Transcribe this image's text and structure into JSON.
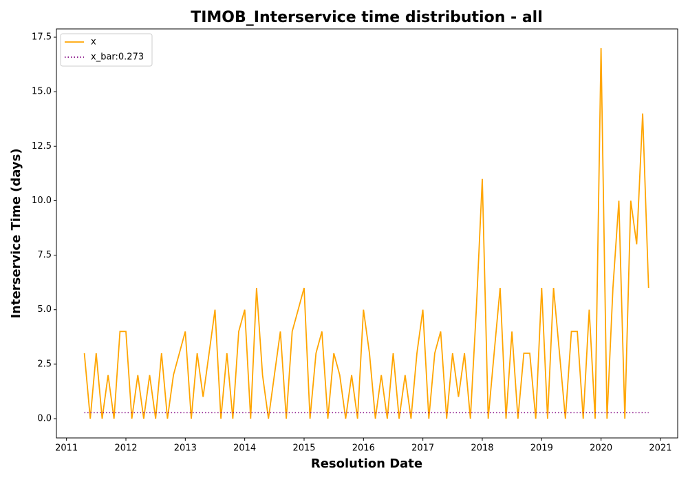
{
  "chart_data": {
    "type": "line",
    "title": "TIMOB_Interservice time distribution - all",
    "xlabel": "Resolution Date",
    "ylabel": "Interservice Time (days)",
    "xlim": [
      2010.83,
      2021.29
    ],
    "ylim": [
      -0.884,
      17.88
    ],
    "xticks": [
      2011,
      2012,
      2013,
      2014,
      2015,
      2016,
      2017,
      2018,
      2019,
      2020,
      2021
    ],
    "yticks": [
      {
        "value": 0,
        "label": "0.0"
      },
      2.5,
      {
        "value": 5,
        "label": "5.0"
      },
      7.5,
      {
        "value": 10,
        "label": "10.0"
      },
      12.5,
      {
        "value": 15,
        "label": "15.0"
      },
      17.5
    ],
    "legend": "upper left",
    "series": [
      {
        "name": "x",
        "color": "#ffa500",
        "linestyle": "solid",
        "x": [
          2011.3,
          2011.4,
          2011.5,
          2011.6,
          2011.7,
          2011.8,
          2011.9,
          2012.0,
          2012.1,
          2012.2,
          2012.3,
          2012.4,
          2012.5,
          2012.6,
          2012.7,
          2012.8,
          2012.9,
          2013.0,
          2013.1,
          2013.2,
          2013.3,
          2013.4,
          2013.5,
          2013.6,
          2013.7,
          2013.8,
          2013.9,
          2014.0,
          2014.1,
          2014.2,
          2014.3,
          2014.4,
          2014.5,
          2014.6,
          2014.7,
          2014.8,
          2014.9,
          2015.0,
          2015.1,
          2015.2,
          2015.3,
          2015.4,
          2015.5,
          2015.6,
          2015.7,
          2015.8,
          2015.9,
          2016.0,
          2016.1,
          2016.2,
          2016.3,
          2016.4,
          2016.5,
          2016.6,
          2016.7,
          2016.8,
          2016.9,
          2017.0,
          2017.1,
          2017.2,
          2017.3,
          2017.4,
          2017.5,
          2017.6,
          2017.7,
          2017.8,
          2017.9,
          2018.0,
          2018.1,
          2018.2,
          2018.3,
          2018.4,
          2018.5,
          2018.6,
          2018.7,
          2018.8,
          2018.9,
          2019.0,
          2019.1,
          2019.2,
          2019.3,
          2019.4,
          2019.5,
          2019.6,
          2019.7,
          2019.8,
          2019.9,
          2020.0,
          2020.1,
          2020.2,
          2020.3,
          2020.4,
          2020.5,
          2020.6,
          2020.7,
          2020.8
        ],
        "values": [
          3,
          0,
          3,
          0,
          2,
          0,
          4,
          4,
          0,
          2,
          0,
          2,
          0,
          3,
          0,
          2,
          3,
          4,
          0,
          3,
          1,
          3,
          5,
          0,
          3,
          0,
          4,
          5,
          0,
          6,
          2,
          0,
          2,
          4,
          0,
          4,
          5,
          6,
          0,
          3,
          4,
          0,
          3,
          2,
          0,
          2,
          0,
          5,
          3,
          0,
          2,
          0,
          3,
          0,
          2,
          0,
          3,
          5,
          0,
          3,
          4,
          0,
          3,
          1,
          3,
          0,
          5,
          11,
          0,
          3,
          6,
          0,
          4,
          0,
          3,
          3,
          0,
          6,
          0,
          6,
          3,
          0,
          4,
          4,
          0,
          5,
          0,
          17,
          0,
          6,
          10,
          0,
          10,
          8,
          14,
          6
        ]
      },
      {
        "name": "x_bar:0.273",
        "color": "#800080",
        "linestyle": "dotted",
        "x": [
          2011.3,
          2020.8
        ],
        "values": [
          0.273,
          0.273
        ]
      }
    ]
  }
}
